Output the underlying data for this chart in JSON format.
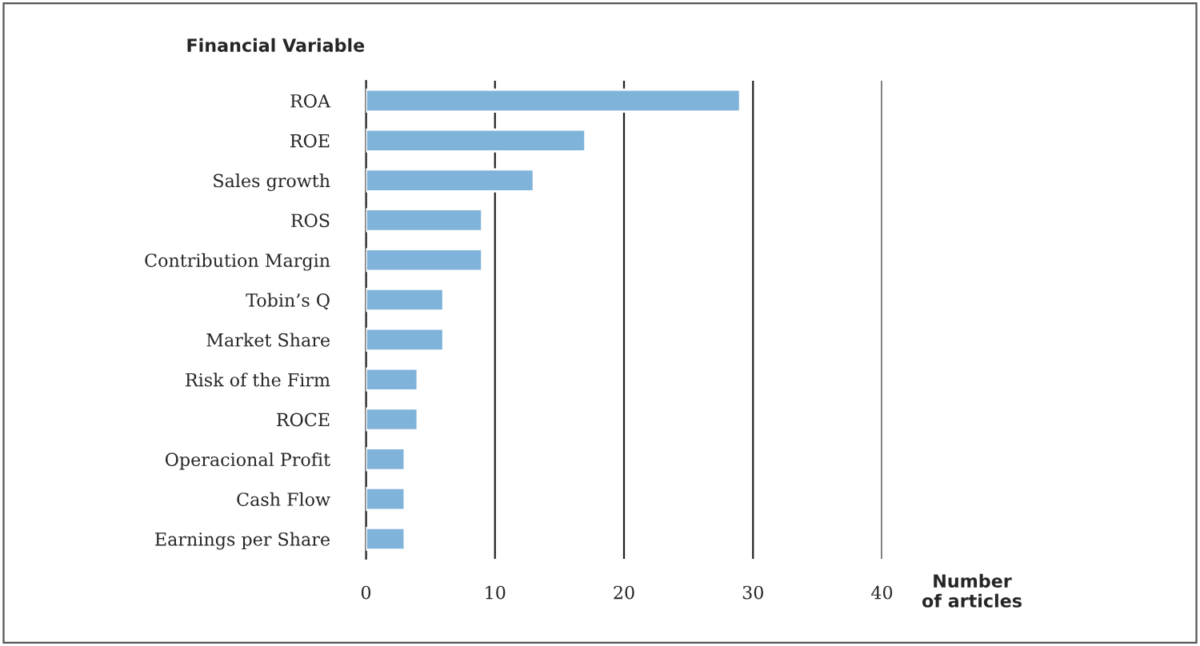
{
  "chart_data": {
    "type": "bar",
    "orientation": "horizontal",
    "ylabel": "Financial Variable",
    "xlabel": "Number\nof articles",
    "categories": [
      "ROA",
      "ROE",
      "Sales growth",
      "ROS",
      "Contribution Margin",
      "Tobin’s Q",
      "Market Share",
      "Risk of the Firm",
      "ROCE",
      "Operacional Profit",
      "Cash Flow",
      "Earnings per Share"
    ],
    "values": [
      29,
      17,
      13,
      9,
      9,
      6,
      6,
      4,
      4,
      3,
      3,
      3
    ],
    "color": "#80b3d9",
    "xlim": [
      0,
      40
    ],
    "xticks": [
      0,
      10,
      20,
      30,
      40
    ],
    "grid": "x"
  }
}
